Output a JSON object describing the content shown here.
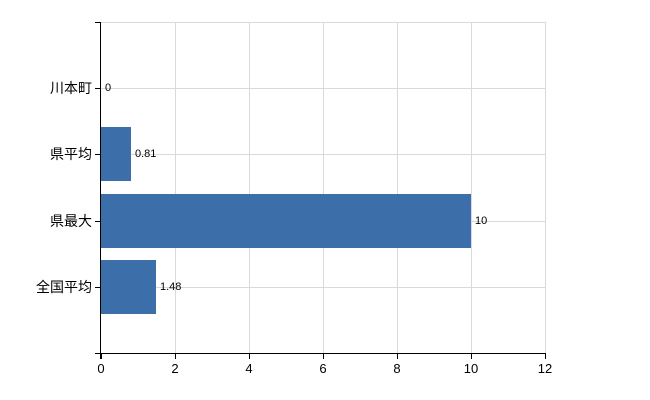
{
  "chart_data": {
    "type": "bar",
    "orientation": "horizontal",
    "categories": [
      "川本町",
      "県平均",
      "県最大",
      "全国平均"
    ],
    "values": [
      0,
      0.81,
      10,
      1.48
    ],
    "value_labels": [
      "0",
      "0.81",
      "10",
      "1.48"
    ],
    "xlim": [
      0,
      12
    ],
    "x_tick_values": [
      0,
      2,
      4,
      6,
      8,
      10,
      12
    ],
    "x_ticks": [
      "0",
      "2",
      "4",
      "6",
      "8",
      "10",
      "12"
    ],
    "grid": true,
    "legend": "none",
    "colors": {
      "bar": "#3c6eaa",
      "gridline": "#d9d9d9",
      "axis": "#000000",
      "text": "#000000",
      "background": "#ffffff"
    }
  }
}
